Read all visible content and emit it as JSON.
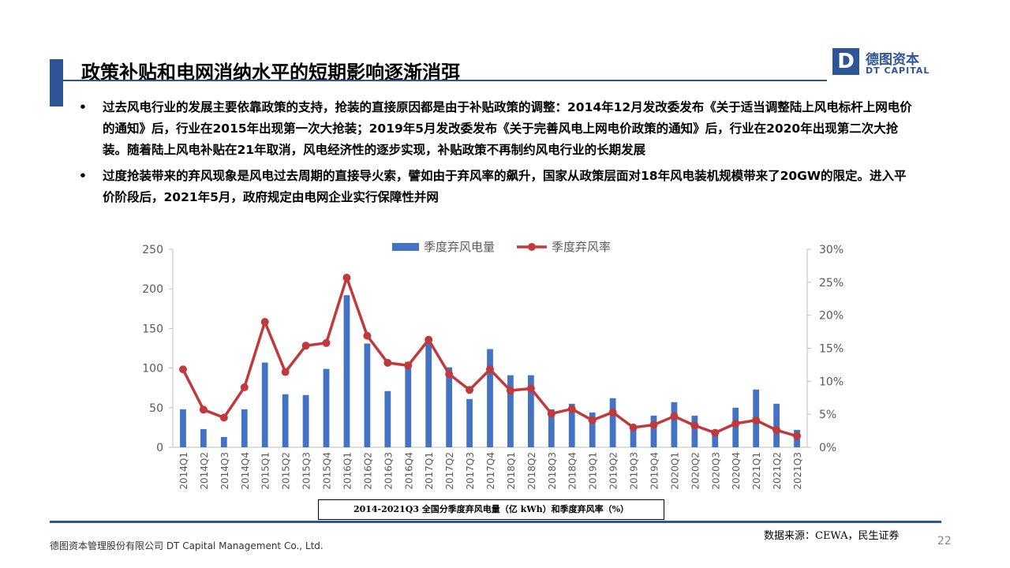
{
  "slide": {
    "title": "政策补贴和电网消纳水平的短期影响逐渐消弭",
    "logo_cn": "德图资本",
    "logo_en": "DT CAPITAL",
    "logo_letter": "D",
    "bullets": [
      {
        "marker": "•",
        "text": "过去风电行业的发展主要依靠政策的支持，抢装的直接原因都是由于补贴政策的调整：2014年12月发改委发布《关于适当调整陆上风电标杆上网电价的通知》后，行业在2015年出现第一次大抢装；2019年5月发改委发布《关于完善风电上网电价政策的通知》后，行业在2020年出现第二次大抢装。随着陆上风电补贴在21年取消，风电经济性的逐步实现，补贴政策不再制约风电行业的长期发展"
      },
      {
        "marker": "•",
        "text": "过度抢装带来的弃风现象是风电过去周期的直接导火索，譬如由于弃风率的飙升，国家从政策层面对18年风电装机规模带来了20GW的限定。进入平价阶段后，2021年5月，政府规定由电网企业实行保障性并网"
      }
    ],
    "caption": "2014-2021Q3 全国分季度弃风电量（亿 kWh）和季度弃风率（%）",
    "source": "数据来源：CEWA，民生证券",
    "company": "德图资本管理股份有限公司 DT Capital Management Co., Ltd.",
    "page_number": "22"
  },
  "chart_data": {
    "type": "bar+line",
    "categories": [
      "2014Q1",
      "2014Q2",
      "2014Q3",
      "2014Q4",
      "2015Q1",
      "2015Q2",
      "2015Q3",
      "2015Q4",
      "2016Q1",
      "2016Q2",
      "2016Q3",
      "2016Q4",
      "2017Q1",
      "2017Q2",
      "2017Q3",
      "2017Q4",
      "2018Q1",
      "2018Q2",
      "2018Q3",
      "2018Q4",
      "2019Q1",
      "2019Q2",
      "2019Q3",
      "2019Q4",
      "2020Q1",
      "2020Q2",
      "2020Q3",
      "2020Q4",
      "2021Q1",
      "2021Q2",
      "2021Q3"
    ],
    "series": [
      {
        "name": "季度弃风电量",
        "kind": "bar",
        "axis": "left",
        "color": "#4472c4",
        "values": [
          48,
          23,
          13,
          48,
          107,
          67,
          66,
          99,
          192,
          131,
          71,
          108,
          135,
          101,
          61,
          124,
          91,
          91,
          48,
          55,
          44,
          62,
          27,
          40,
          57,
          40,
          21,
          50,
          73,
          55,
          22
        ]
      },
      {
        "name": "季度弃风率",
        "kind": "line",
        "axis": "right",
        "color": "#c0393b",
        "values": [
          11.8,
          5.7,
          4.5,
          9.1,
          19.0,
          11.4,
          15.4,
          15.8,
          25.7,
          16.9,
          12.8,
          12.4,
          16.3,
          11.1,
          8.7,
          11.8,
          8.6,
          8.9,
          5.1,
          5.8,
          4.1,
          5.3,
          3.0,
          3.4,
          4.7,
          3.3,
          2.2,
          3.6,
          4.1,
          2.6,
          1.7
        ]
      }
    ],
    "y_left": {
      "min": 0,
      "max": 250,
      "ticks": [
        "0",
        "50",
        "100",
        "150",
        "200",
        "250"
      ]
    },
    "y_right": {
      "min": 0,
      "max": 30,
      "ticks": [
        "0%",
        "5%",
        "10%",
        "15%",
        "20%",
        "25%",
        "30%"
      ]
    },
    "legend": {
      "position": "top",
      "items": [
        "季度弃风电量",
        "季度弃风率"
      ]
    },
    "grid": false
  }
}
